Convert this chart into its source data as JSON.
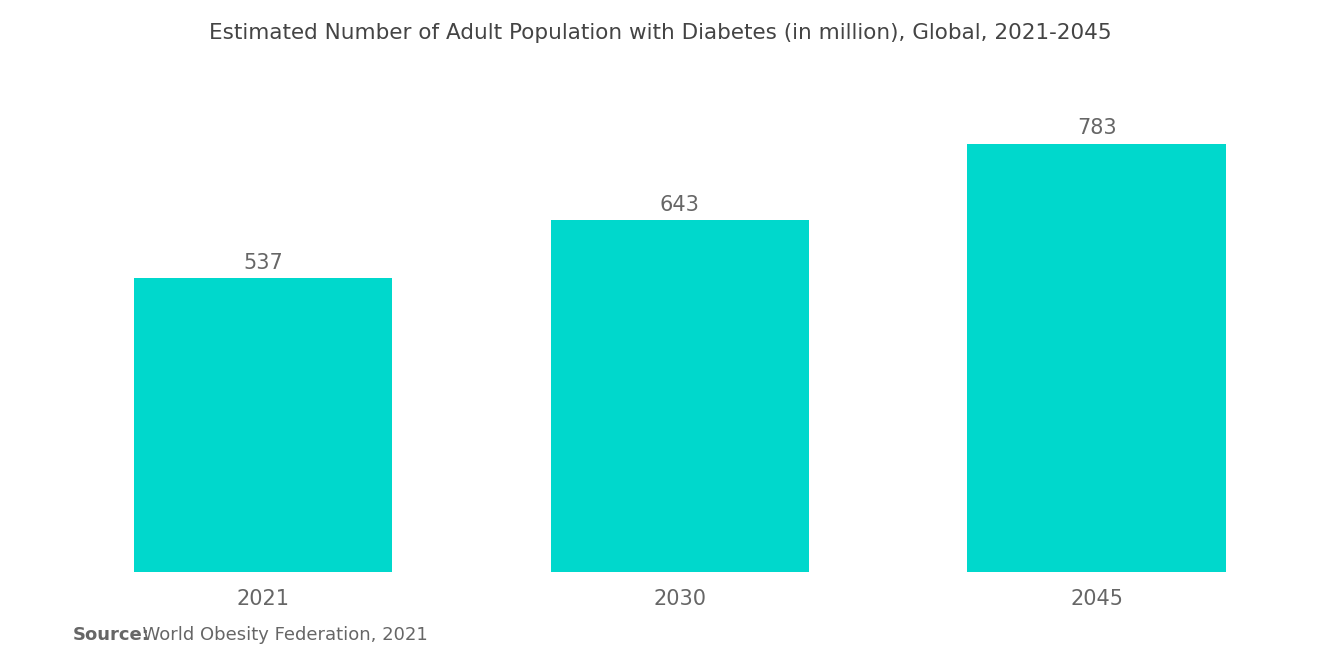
{
  "title": "Estimated Number of Adult Population with Diabetes (in million), Global, 2021-2045",
  "categories": [
    "2021",
    "2030",
    "2045"
  ],
  "values": [
    537,
    643,
    783
  ],
  "bar_color": "#00D8CC",
  "background_color": "#FFFFFF",
  "value_labels": [
    "537",
    "643",
    "783"
  ],
  "source_bold": "Source:",
  "source_normal": "  World Obesity Federation, 2021",
  "title_fontsize": 15.5,
  "label_fontsize": 15,
  "value_fontsize": 15,
  "source_fontsize": 13,
  "ylim": [
    0,
    900
  ],
  "bar_width": 0.62
}
